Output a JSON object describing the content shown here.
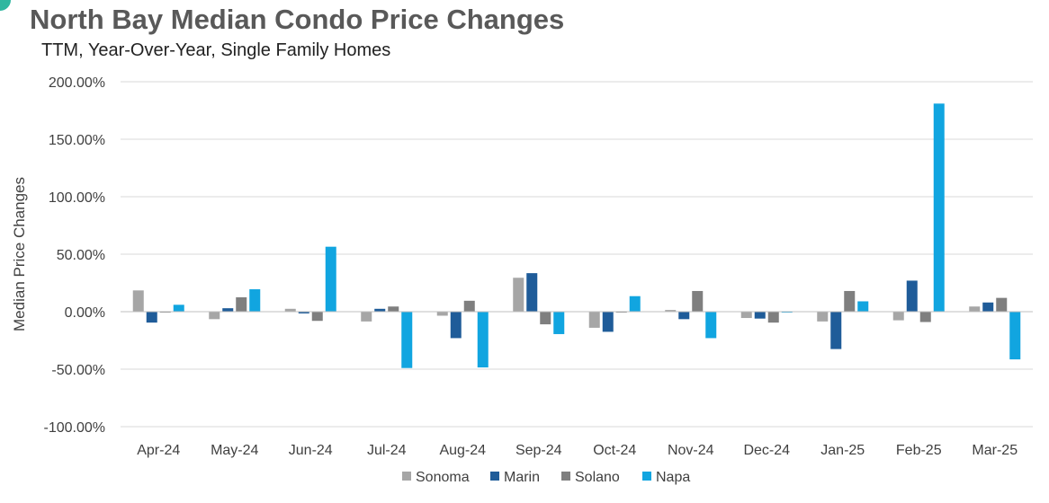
{
  "chart_data": {
    "type": "bar",
    "title": "North Bay Median Condo Price Changes",
    "subtitle": "TTM, Year-Over-Year, Single Family Homes",
    "xlabel": "",
    "ylabel": "Median Price Changes",
    "ylim": [
      -100,
      200
    ],
    "yticks": [
      "200.00%",
      "150.00%",
      "100.00%",
      "50.00%",
      "0.00%",
      "-50.00%",
      "-100.00%"
    ],
    "ytick_values": [
      200,
      150,
      100,
      50,
      0,
      -50,
      -100
    ],
    "grid": true,
    "legend_position": "bottom",
    "categories": [
      "Apr-24",
      "May-24",
      "Jun-24",
      "Jul-24",
      "Aug-24",
      "Sep-24",
      "Oct-24",
      "Nov-24",
      "Dec-24",
      "Jan-25",
      "Feb-25",
      "Mar-25"
    ],
    "series": [
      {
        "name": "Sonoma",
        "color": "#a6a6a6",
        "values": [
          18.5,
          -6.5,
          2.5,
          -8.5,
          -3.5,
          29.5,
          -14.0,
          1.5,
          -5.5,
          -8.5,
          -7.5,
          4.5
        ]
      },
      {
        "name": "Marin",
        "color": "#1f5c99",
        "values": [
          -9.5,
          3.0,
          -1.5,
          2.5,
          -23.0,
          33.5,
          -17.5,
          -6.5,
          -6.0,
          -32.5,
          27.0,
          8.0
        ]
      },
      {
        "name": "Solano",
        "color": "#7f7f7f",
        "values": [
          -0.5,
          12.5,
          -8.0,
          4.5,
          9.5,
          -11.0,
          -0.5,
          18.0,
          -9.5,
          18.0,
          -9.0,
          12.0
        ]
      },
      {
        "name": "Napa",
        "color": "#11a5e0",
        "values": [
          6.0,
          19.5,
          56.5,
          -49.0,
          -48.5,
          -19.5,
          13.5,
          -23.0,
          -0.5,
          9.0,
          181.0,
          -41.5
        ]
      }
    ]
  },
  "colors": {
    "accent": "#2fb7a0",
    "title": "#595959",
    "grid": "#d9d9d9",
    "axis": "#bfbfbf"
  }
}
